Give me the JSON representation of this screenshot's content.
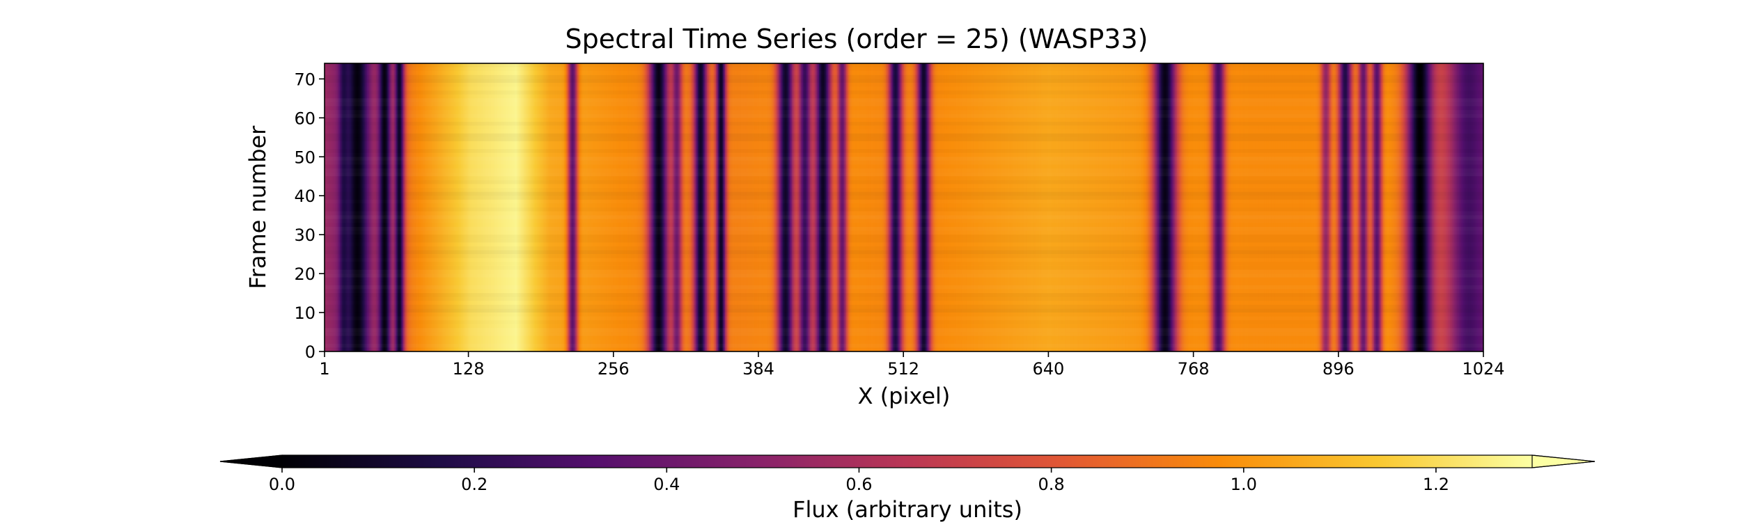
{
  "chart_data": {
    "type": "heatmap",
    "title": "Spectral Time Series (order = 25) (WASP33)",
    "xlabel": "X (pixel)",
    "ylabel": "Frame number",
    "xlim": [
      1,
      1024
    ],
    "ylim": [
      0,
      74
    ],
    "x_ticks": [
      1,
      128,
      256,
      384,
      512,
      640,
      768,
      896,
      1024
    ],
    "y_ticks": [
      0,
      10,
      20,
      30,
      40,
      50,
      60,
      70
    ],
    "colormap": "inferno",
    "colorbar": {
      "label": "Flux (arbitrary units)",
      "range": [
        0.0,
        1.3
      ],
      "ticks": [
        "0.0",
        "0.2",
        "0.4",
        "0.6",
        "0.8",
        "1.0",
        "1.2"
      ],
      "extend": "both",
      "orientation": "horizontal"
    },
    "continuum_profile": [
      [
        1,
        0.55
      ],
      [
        15,
        0.5
      ],
      [
        40,
        0.6
      ],
      [
        80,
        0.95
      ],
      [
        130,
        1.2
      ],
      [
        170,
        1.27
      ],
      [
        200,
        1.05
      ],
      [
        260,
        0.98
      ],
      [
        330,
        0.92
      ],
      [
        380,
        0.95
      ],
      [
        450,
        0.98
      ],
      [
        520,
        0.95
      ],
      [
        580,
        1.0
      ],
      [
        640,
        1.05
      ],
      [
        700,
        1.02
      ],
      [
        760,
        0.98
      ],
      [
        820,
        0.97
      ],
      [
        880,
        0.97
      ],
      [
        940,
        0.98
      ],
      [
        980,
        0.85
      ],
      [
        1010,
        0.55
      ],
      [
        1024,
        0.45
      ]
    ],
    "absorption_bands": [
      {
        "center": 18,
        "width": 3,
        "depth": 0.6
      },
      {
        "center": 30,
        "width": 7,
        "depth": 0.95
      },
      {
        "center": 54,
        "width": 4,
        "depth": 0.95
      },
      {
        "center": 67,
        "width": 3,
        "depth": 0.9
      },
      {
        "center": 220,
        "width": 3,
        "depth": 0.65
      },
      {
        "center": 296,
        "width": 6,
        "depth": 0.95
      },
      {
        "center": 312,
        "width": 3,
        "depth": 0.55
      },
      {
        "center": 333,
        "width": 4,
        "depth": 0.9
      },
      {
        "center": 351,
        "width": 3,
        "depth": 0.92
      },
      {
        "center": 408,
        "width": 5,
        "depth": 0.9
      },
      {
        "center": 425,
        "width": 4,
        "depth": 0.75
      },
      {
        "center": 441,
        "width": 5,
        "depth": 0.92
      },
      {
        "center": 458,
        "width": 3,
        "depth": 0.6
      },
      {
        "center": 505,
        "width": 4,
        "depth": 0.85
      },
      {
        "center": 530,
        "width": 4,
        "depth": 0.9
      },
      {
        "center": 743,
        "width": 7,
        "depth": 0.95
      },
      {
        "center": 790,
        "width": 4,
        "depth": 0.7
      },
      {
        "center": 885,
        "width": 3,
        "depth": 0.45
      },
      {
        "center": 902,
        "width": 4,
        "depth": 0.82
      },
      {
        "center": 918,
        "width": 3,
        "depth": 0.6
      },
      {
        "center": 930,
        "width": 3,
        "depth": 0.65
      },
      {
        "center": 968,
        "width": 8,
        "depth": 1.0
      },
      {
        "center": 1010,
        "width": 10,
        "depth": 0.5
      }
    ]
  }
}
